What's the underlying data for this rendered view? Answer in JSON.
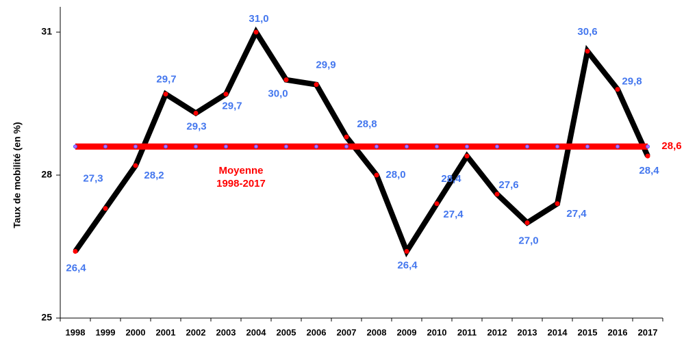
{
  "chart_data": {
    "type": "line",
    "y_label": "Taux de mobilité (en %)",
    "annotation": [
      "Moyenne",
      "1998-2017"
    ],
    "categories": [
      "1998",
      "1999",
      "2000",
      "2001",
      "2002",
      "2003",
      "2004",
      "2005",
      "2006",
      "2007",
      "2008",
      "2009",
      "2010",
      "2011",
      "2012",
      "2013",
      "2014",
      "2015",
      "2016",
      "2017"
    ],
    "series": [
      {
        "color": "#000000",
        "marker_color": "#ff0000",
        "values": [
          26.4,
          27.3,
          28.2,
          29.7,
          29.3,
          29.7,
          31.0,
          30.0,
          29.9,
          28.8,
          28.0,
          26.4,
          27.4,
          28.4,
          27.6,
          27.0,
          27.4,
          30.6,
          29.8,
          28.4
        ],
        "value_labels": [
          "26,4",
          "27,3",
          "28,2",
          "29,7",
          "29,3",
          "29,7",
          "31,0",
          "30,0",
          "29,9",
          "28,8",
          "28,0",
          "26,4",
          "27,4",
          "28,4",
          "27,6",
          "27,0",
          "27,4",
          "30,6",
          "29,8",
          "28,4"
        ]
      },
      {
        "color": "#ff0000",
        "marker_color": "#cc66ff",
        "values": [
          28.6,
          28.6,
          28.6,
          28.6,
          28.6,
          28.6,
          28.6,
          28.6,
          28.6,
          28.6,
          28.6,
          28.6,
          28.6,
          28.6,
          28.6,
          28.6,
          28.6,
          28.6,
          28.6,
          28.6
        ],
        "value_labels": [
          null,
          null,
          null,
          null,
          null,
          null,
          null,
          null,
          null,
          null,
          null,
          null,
          null,
          null,
          null,
          null,
          null,
          null,
          null,
          "28,6"
        ]
      }
    ],
    "ylim": [
      25,
      31
    ],
    "yticks": [
      25,
      28,
      31
    ]
  }
}
